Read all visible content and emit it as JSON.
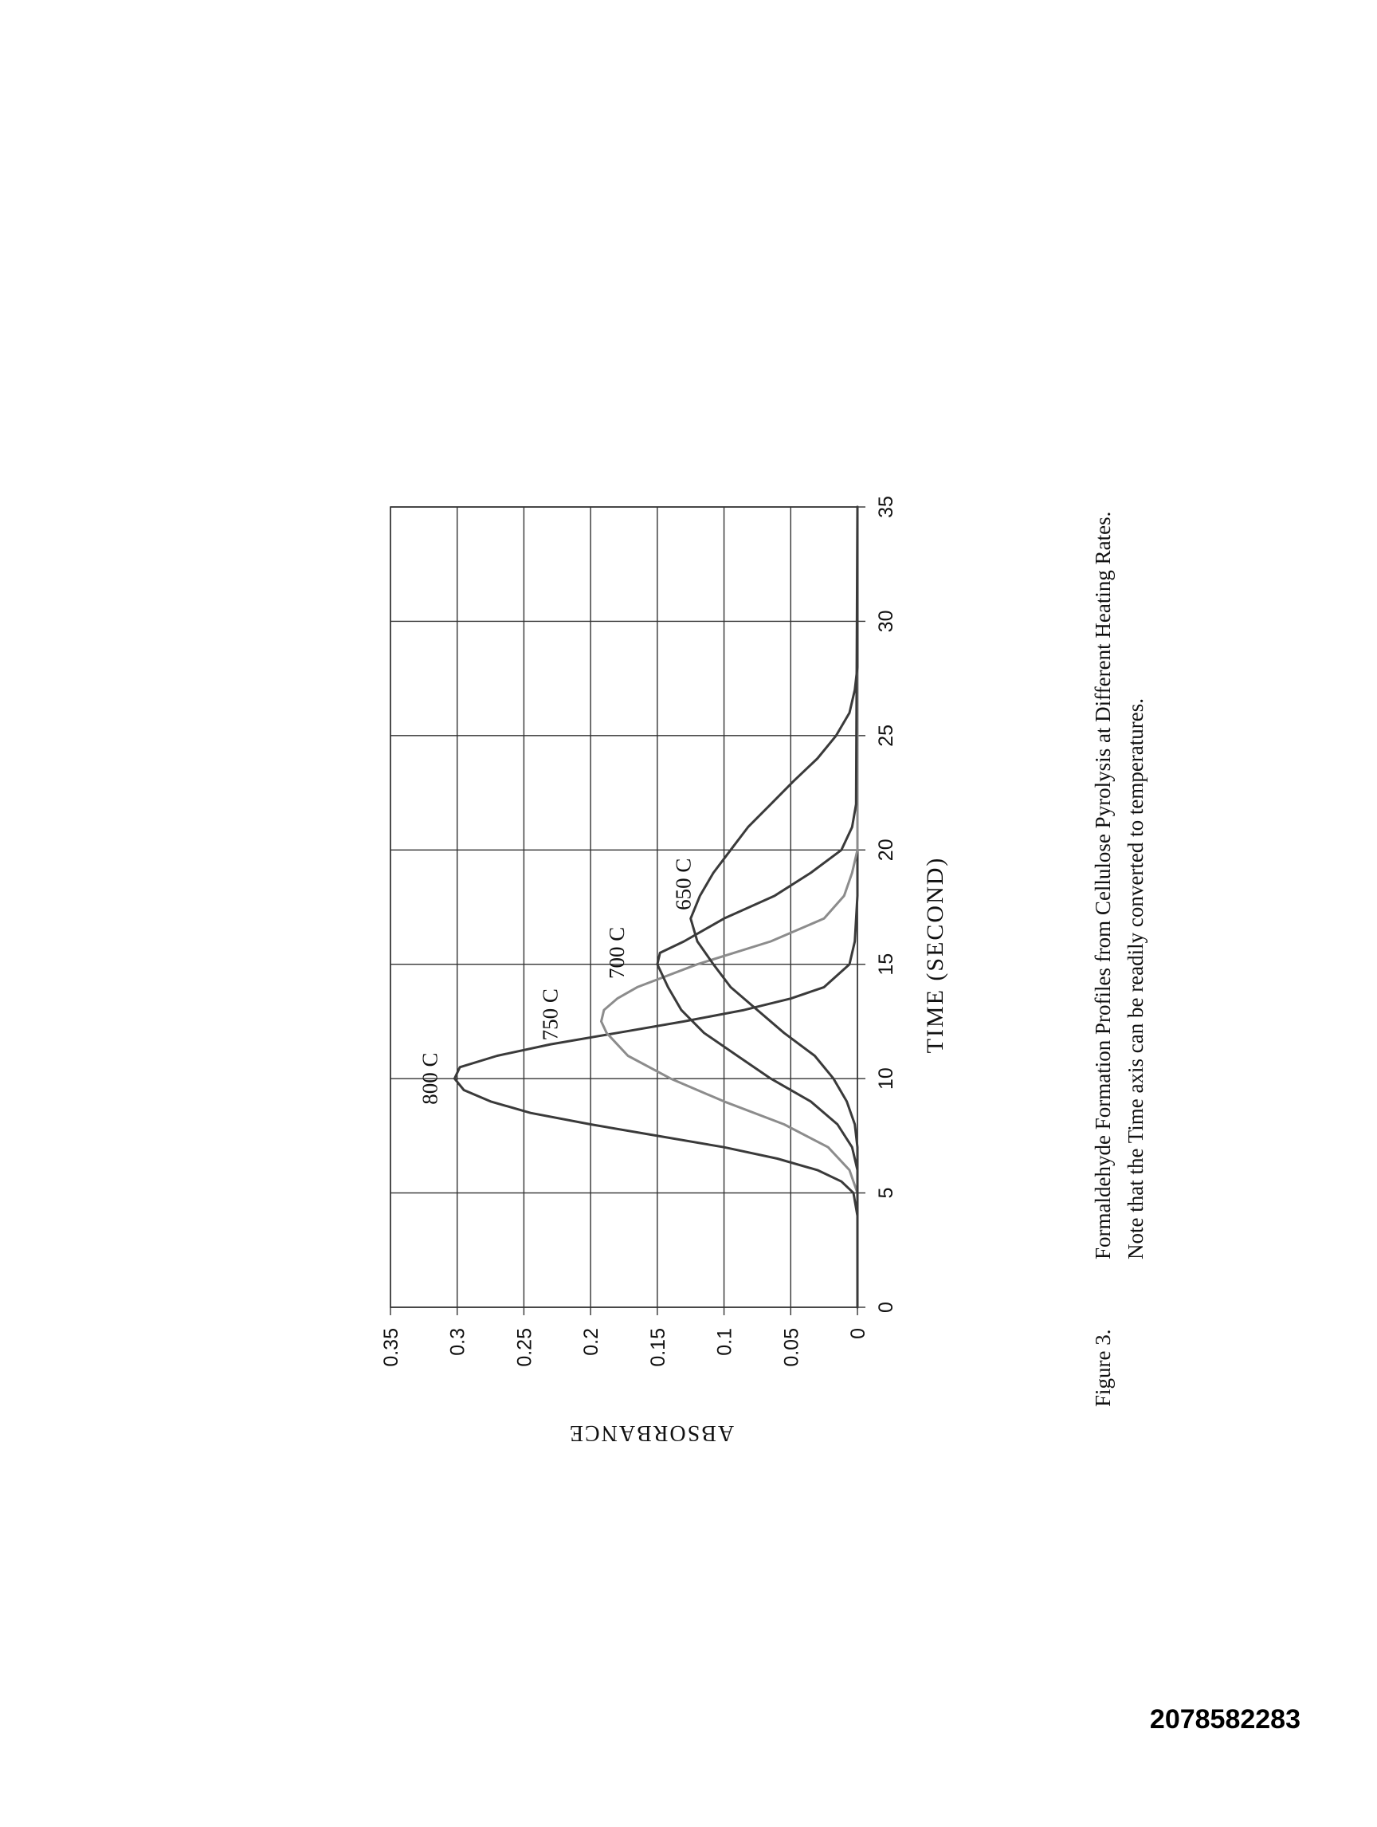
{
  "document_id": "2078582283",
  "figure": {
    "label": "Figure 3.",
    "caption": "Formaldehyde Formation Profiles from Cellulose Pyrolysis at Different Heating Rates.",
    "note": "Note that the Time axis can be readily converted to temperatures."
  },
  "chart_data": {
    "type": "line",
    "xlabel": "TIME (SECOND)",
    "ylabel": "ABSORBANCE",
    "xlim": [
      0,
      35
    ],
    "ylim": [
      0,
      0.35
    ],
    "x_ticks": [
      "0",
      "5",
      "10",
      "15",
      "20",
      "25",
      "30",
      "35"
    ],
    "y_ticks": [
      "0",
      "0.05",
      "0.1",
      "0.15",
      "0.2",
      "0.25",
      "0.3",
      "0.35"
    ],
    "grid": true,
    "orientation": "rotated 90 degrees counter-clockwise on page",
    "colors": {
      "grid": "#333333",
      "line_dark": "#3a3a3a",
      "line_light": "#8c8c8c"
    },
    "series": [
      {
        "name": "800 C",
        "color": "#3a3a3a",
        "points": [
          [
            0,
            0
          ],
          [
            4,
            0
          ],
          [
            5,
            0.003
          ],
          [
            5.5,
            0.012
          ],
          [
            6,
            0.03
          ],
          [
            6.5,
            0.06
          ],
          [
            7,
            0.1
          ],
          [
            7.5,
            0.15
          ],
          [
            8,
            0.2
          ],
          [
            8.5,
            0.245
          ],
          [
            9,
            0.275
          ],
          [
            9.5,
            0.295
          ],
          [
            10,
            0.302
          ],
          [
            10.5,
            0.298
          ],
          [
            11,
            0.27
          ],
          [
            11.5,
            0.23
          ],
          [
            12,
            0.18
          ],
          [
            12.5,
            0.13
          ],
          [
            13,
            0.085
          ],
          [
            13.5,
            0.05
          ],
          [
            14,
            0.025
          ],
          [
            15,
            0.006
          ],
          [
            16,
            0.002
          ],
          [
            18,
            0
          ],
          [
            35,
            0
          ]
        ]
      },
      {
        "name": "750 C",
        "color": "#8c8c8c",
        "points": [
          [
            0,
            0
          ],
          [
            5,
            0
          ],
          [
            6,
            0.006
          ],
          [
            7,
            0.022
          ],
          [
            8,
            0.055
          ],
          [
            9,
            0.1
          ],
          [
            10,
            0.14
          ],
          [
            11,
            0.172
          ],
          [
            12,
            0.188
          ],
          [
            12.5,
            0.192
          ],
          [
            13,
            0.19
          ],
          [
            13.5,
            0.18
          ],
          [
            14,
            0.165
          ],
          [
            15,
            0.12
          ],
          [
            16,
            0.065
          ],
          [
            17,
            0.025
          ],
          [
            18,
            0.01
          ],
          [
            19,
            0.004
          ],
          [
            20,
            0
          ],
          [
            35,
            0
          ]
        ]
      },
      {
        "name": "700 C",
        "color": "#3a3a3a",
        "points": [
          [
            0,
            0
          ],
          [
            6,
            0
          ],
          [
            7,
            0.004
          ],
          [
            8,
            0.015
          ],
          [
            9,
            0.035
          ],
          [
            10,
            0.065
          ],
          [
            11,
            0.09
          ],
          [
            12,
            0.115
          ],
          [
            13,
            0.132
          ],
          [
            14,
            0.142
          ],
          [
            15,
            0.15
          ],
          [
            15.5,
            0.148
          ],
          [
            16,
            0.13
          ],
          [
            17,
            0.1
          ],
          [
            18,
            0.062
          ],
          [
            19,
            0.035
          ],
          [
            20,
            0.012
          ],
          [
            21,
            0.004
          ],
          [
            22,
            0.001
          ],
          [
            35,
            0
          ]
        ]
      },
      {
        "name": "650 C",
        "color": "#3a3a3a",
        "points": [
          [
            0,
            0
          ],
          [
            7,
            0
          ],
          [
            8,
            0.002
          ],
          [
            9,
            0.008
          ],
          [
            10,
            0.018
          ],
          [
            11,
            0.032
          ],
          [
            12,
            0.055
          ],
          [
            13,
            0.075
          ],
          [
            14,
            0.095
          ],
          [
            15,
            0.108
          ],
          [
            16,
            0.12
          ],
          [
            17,
            0.125
          ],
          [
            18,
            0.118
          ],
          [
            19,
            0.108
          ],
          [
            20,
            0.095
          ],
          [
            21,
            0.082
          ],
          [
            22,
            0.065
          ],
          [
            23,
            0.048
          ],
          [
            24,
            0.03
          ],
          [
            25,
            0.016
          ],
          [
            26,
            0.006
          ],
          [
            27,
            0.002
          ],
          [
            28,
            0
          ],
          [
            35,
            0
          ]
        ]
      }
    ],
    "annotations": [
      {
        "text": "800 C",
        "x": 10.0,
        "y": 0.315
      },
      {
        "text": "750 C",
        "x": 12.8,
        "y": 0.225
      },
      {
        "text": "700 C",
        "x": 15.5,
        "y": 0.175
      },
      {
        "text": "650 C",
        "x": 18.5,
        "y": 0.125
      }
    ]
  }
}
